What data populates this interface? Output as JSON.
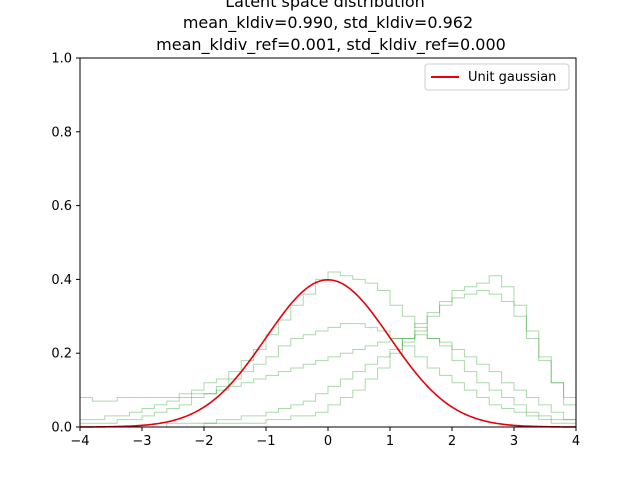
{
  "chart_data": {
    "type": "line",
    "title_lines": [
      "Latent space distribution",
      "mean_kldiv=0.990, std_kldiv=0.962",
      "mean_kldiv_ref=0.001, std_kldiv_ref=0.000"
    ],
    "xlabel": "",
    "ylabel": "",
    "xlim": [
      -4,
      4
    ],
    "ylim": [
      0,
      1.0
    ],
    "xticks": [
      -4,
      -3,
      -2,
      -1,
      0,
      1,
      2,
      3,
      4
    ],
    "xtick_labels": [
      "−4",
      "−3",
      "−2",
      "−1",
      "0",
      "1",
      "2",
      "3",
      "4"
    ],
    "yticks": [
      0.0,
      0.2,
      0.4,
      0.6,
      0.8,
      1.0
    ],
    "ytick_labels": [
      "0.0",
      "0.2",
      "0.4",
      "0.6",
      "0.8",
      "1.0"
    ],
    "grid": false,
    "legend": {
      "position": "top-right",
      "entries": [
        "Unit gaussian"
      ]
    },
    "reference_curve": {
      "name": "Unit gaussian",
      "kind": "standard-normal-pdf",
      "mean": 0,
      "std": 1,
      "color": "#e8000b"
    },
    "histogram_series": [
      {
        "bin_start": -4,
        "bin_width": 0.2,
        "color": "#2ca02c",
        "values": [
          0.02,
          0.02,
          0.03,
          0.03,
          0.04,
          0.05,
          0.06,
          0.07,
          0.09,
          0.1,
          0.12,
          0.13,
          0.15,
          0.18,
          0.21,
          0.25,
          0.29,
          0.33,
          0.36,
          0.4,
          0.42,
          0.41,
          0.4,
          0.39,
          0.37,
          0.33,
          0.3,
          0.27,
          0.24,
          0.22,
          0.18,
          0.15,
          0.12,
          0.1,
          0.08,
          0.06,
          0.04,
          0.03,
          0.02,
          0.02
        ]
      },
      {
        "bin_start": -4,
        "bin_width": 0.2,
        "color": "#2ca02c",
        "values": [
          0.0,
          0.0,
          0.0,
          0.0,
          0.0,
          0.0,
          0.0,
          0.01,
          0.01,
          0.01,
          0.01,
          0.02,
          0.02,
          0.03,
          0.03,
          0.04,
          0.05,
          0.06,
          0.07,
          0.09,
          0.11,
          0.13,
          0.15,
          0.17,
          0.19,
          0.21,
          0.23,
          0.26,
          0.3,
          0.33,
          0.35,
          0.36,
          0.37,
          0.36,
          0.34,
          0.3,
          0.24,
          0.18,
          0.12,
          0.08
        ]
      },
      {
        "bin_start": -4,
        "bin_width": 0.2,
        "color": "#2ca02c",
        "values": [
          0.0,
          0.0,
          0.0,
          0.0,
          0.0,
          0.0,
          0.0,
          0.0,
          0.0,
          0.0,
          0.01,
          0.01,
          0.01,
          0.01,
          0.01,
          0.02,
          0.02,
          0.03,
          0.03,
          0.04,
          0.06,
          0.08,
          0.1,
          0.13,
          0.16,
          0.2,
          0.24,
          0.28,
          0.31,
          0.34,
          0.37,
          0.38,
          0.39,
          0.41,
          0.38,
          0.33,
          0.26,
          0.19,
          0.12,
          0.06
        ]
      },
      {
        "bin_start": -4,
        "bin_width": 0.2,
        "color": "#2ca02c",
        "values": [
          0.08,
          0.07,
          0.07,
          0.08,
          0.08,
          0.08,
          0.08,
          0.08,
          0.08,
          0.09,
          0.09,
          0.1,
          0.11,
          0.12,
          0.13,
          0.14,
          0.15,
          0.16,
          0.17,
          0.18,
          0.19,
          0.2,
          0.21,
          0.22,
          0.23,
          0.24,
          0.24,
          0.25,
          0.24,
          0.23,
          0.21,
          0.19,
          0.17,
          0.15,
          0.12,
          0.1,
          0.08,
          0.06,
          0.04,
          0.02
        ]
      },
      {
        "bin_start": -4,
        "bin_width": 0.2,
        "color": "#2ca02c",
        "values": [
          0.01,
          0.01,
          0.01,
          0.02,
          0.02,
          0.03,
          0.04,
          0.05,
          0.06,
          0.08,
          0.09,
          0.11,
          0.13,
          0.15,
          0.17,
          0.19,
          0.22,
          0.24,
          0.25,
          0.26,
          0.27,
          0.28,
          0.28,
          0.27,
          0.26,
          0.24,
          0.22,
          0.19,
          0.16,
          0.14,
          0.12,
          0.1,
          0.08,
          0.06,
          0.05,
          0.04,
          0.03,
          0.02,
          0.01,
          0.01
        ]
      }
    ]
  }
}
